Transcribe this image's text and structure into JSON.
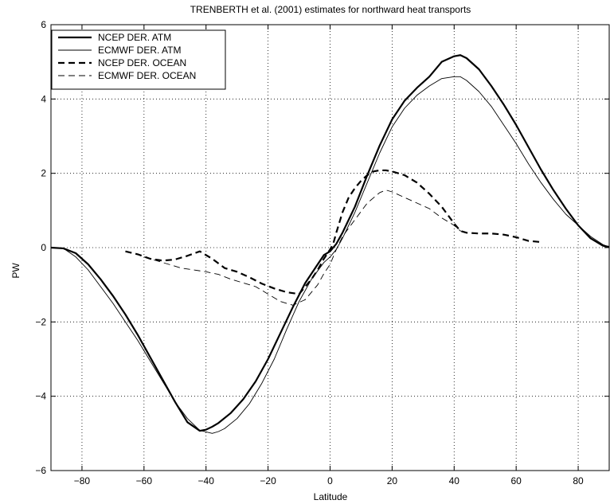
{
  "chart_data": {
    "type": "line",
    "title": "TRENBERTH et al. (2001) estimates for northward heat transports",
    "xlabel": "Latitude",
    "ylabel": "PW",
    "xlim": [
      -90,
      90
    ],
    "ylim": [
      -6,
      6
    ],
    "xticks": [
      -80,
      -60,
      -40,
      -20,
      0,
      20,
      40,
      60,
      80
    ],
    "yticks": [
      -6,
      -4,
      -2,
      0,
      2,
      4,
      6
    ],
    "grid": true,
    "legend_position": "top-left",
    "series": [
      {
        "name": "NCEP DER. ATM",
        "style": "solid-thick",
        "color": "#000000",
        "x": [
          -90,
          -86,
          -82,
          -78,
          -74,
          -70,
          -66,
          -62,
          -58,
          -54,
          -50,
          -46,
          -42,
          -40,
          -38,
          -36,
          -32,
          -28,
          -24,
          -20,
          -16,
          -12,
          -8,
          -4,
          -2,
          0,
          2,
          4,
          6,
          8,
          12,
          16,
          20,
          24,
          28,
          32,
          36,
          40,
          42,
          44,
          48,
          52,
          56,
          60,
          64,
          68,
          72,
          76,
          80,
          84,
          88,
          90
        ],
        "y": [
          0.0,
          -0.02,
          -0.15,
          -0.45,
          -0.85,
          -1.3,
          -1.8,
          -2.35,
          -2.95,
          -3.55,
          -4.15,
          -4.7,
          -4.93,
          -4.9,
          -4.82,
          -4.72,
          -4.45,
          -4.08,
          -3.6,
          -3.0,
          -2.3,
          -1.6,
          -0.95,
          -0.45,
          -0.2,
          -0.1,
          0.1,
          0.4,
          0.75,
          1.1,
          1.95,
          2.75,
          3.45,
          3.95,
          4.3,
          4.6,
          5.0,
          5.15,
          5.18,
          5.1,
          4.8,
          4.35,
          3.85,
          3.3,
          2.7,
          2.1,
          1.55,
          1.05,
          0.6,
          0.25,
          0.05,
          0.02
        ]
      },
      {
        "name": "ECMWF DER. ATM",
        "style": "solid-thin",
        "color": "#000000",
        "x": [
          -90,
          -86,
          -82,
          -78,
          -74,
          -70,
          -66,
          -62,
          -58,
          -54,
          -50,
          -46,
          -42,
          -38,
          -36,
          -34,
          -30,
          -26,
          -22,
          -18,
          -14,
          -10,
          -6,
          -2,
          0,
          2,
          4,
          6,
          8,
          12,
          16,
          20,
          24,
          28,
          32,
          36,
          40,
          42,
          44,
          48,
          52,
          56,
          60,
          64,
          68,
          72,
          76,
          80,
          84,
          88,
          90
        ],
        "y": [
          0.0,
          -0.02,
          -0.25,
          -0.6,
          -1.05,
          -1.5,
          -2.0,
          -2.5,
          -3.05,
          -3.6,
          -4.15,
          -4.6,
          -4.92,
          -5.0,
          -4.95,
          -4.87,
          -4.6,
          -4.2,
          -3.65,
          -3.0,
          -2.2,
          -1.45,
          -0.85,
          -0.4,
          -0.25,
          -0.05,
          0.25,
          0.6,
          0.95,
          1.75,
          2.55,
          3.25,
          3.75,
          4.1,
          4.35,
          4.55,
          4.6,
          4.6,
          4.5,
          4.2,
          3.8,
          3.3,
          2.8,
          2.25,
          1.75,
          1.3,
          0.9,
          0.6,
          0.3,
          0.08,
          0.02
        ]
      },
      {
        "name": "NCEP DER. OCEAN",
        "style": "dashed-thick",
        "color": "#000000",
        "x": [
          -66,
          -62,
          -58,
          -54,
          -50,
          -46,
          -42,
          -38,
          -34,
          -30,
          -26,
          -22,
          -18,
          -14,
          -10,
          -8,
          -6,
          -4,
          -2,
          0,
          1,
          2,
          4,
          6,
          8,
          10,
          12,
          14,
          16,
          18,
          20,
          24,
          28,
          32,
          36,
          40,
          42,
          44,
          48,
          52,
          56,
          60,
          64,
          68
        ],
        "y": [
          -0.1,
          -0.18,
          -0.3,
          -0.35,
          -0.32,
          -0.22,
          -0.1,
          -0.3,
          -0.55,
          -0.65,
          -0.8,
          -0.97,
          -1.1,
          -1.2,
          -1.25,
          -1.05,
          -0.85,
          -0.6,
          -0.3,
          -0.05,
          0.1,
          0.4,
          0.95,
          1.35,
          1.6,
          1.8,
          1.95,
          2.05,
          2.08,
          2.08,
          2.05,
          1.95,
          1.75,
          1.45,
          1.1,
          0.65,
          0.45,
          0.4,
          0.38,
          0.38,
          0.35,
          0.28,
          0.18,
          0.15
        ]
      },
      {
        "name": "ECMWF DER. OCEAN",
        "style": "dashed-thin",
        "color": "#000000",
        "x": [
          -60,
          -56,
          -52,
          -48,
          -44,
          -40,
          -36,
          -32,
          -28,
          -24,
          -20,
          -16,
          -12,
          -8,
          -4,
          -2,
          0,
          2,
          4,
          8,
          12,
          16,
          18,
          20,
          24,
          28,
          32,
          36,
          40,
          42,
          44
        ],
        "y": [
          -0.25,
          -0.35,
          -0.45,
          -0.55,
          -0.6,
          -0.65,
          -0.72,
          -0.85,
          -0.95,
          -1.05,
          -1.25,
          -1.45,
          -1.55,
          -1.4,
          -1.0,
          -0.7,
          -0.45,
          -0.05,
          0.3,
          0.75,
          1.2,
          1.48,
          1.55,
          1.5,
          1.35,
          1.2,
          1.05,
          0.8,
          0.6,
          0.45,
          0.4
        ]
      }
    ]
  }
}
